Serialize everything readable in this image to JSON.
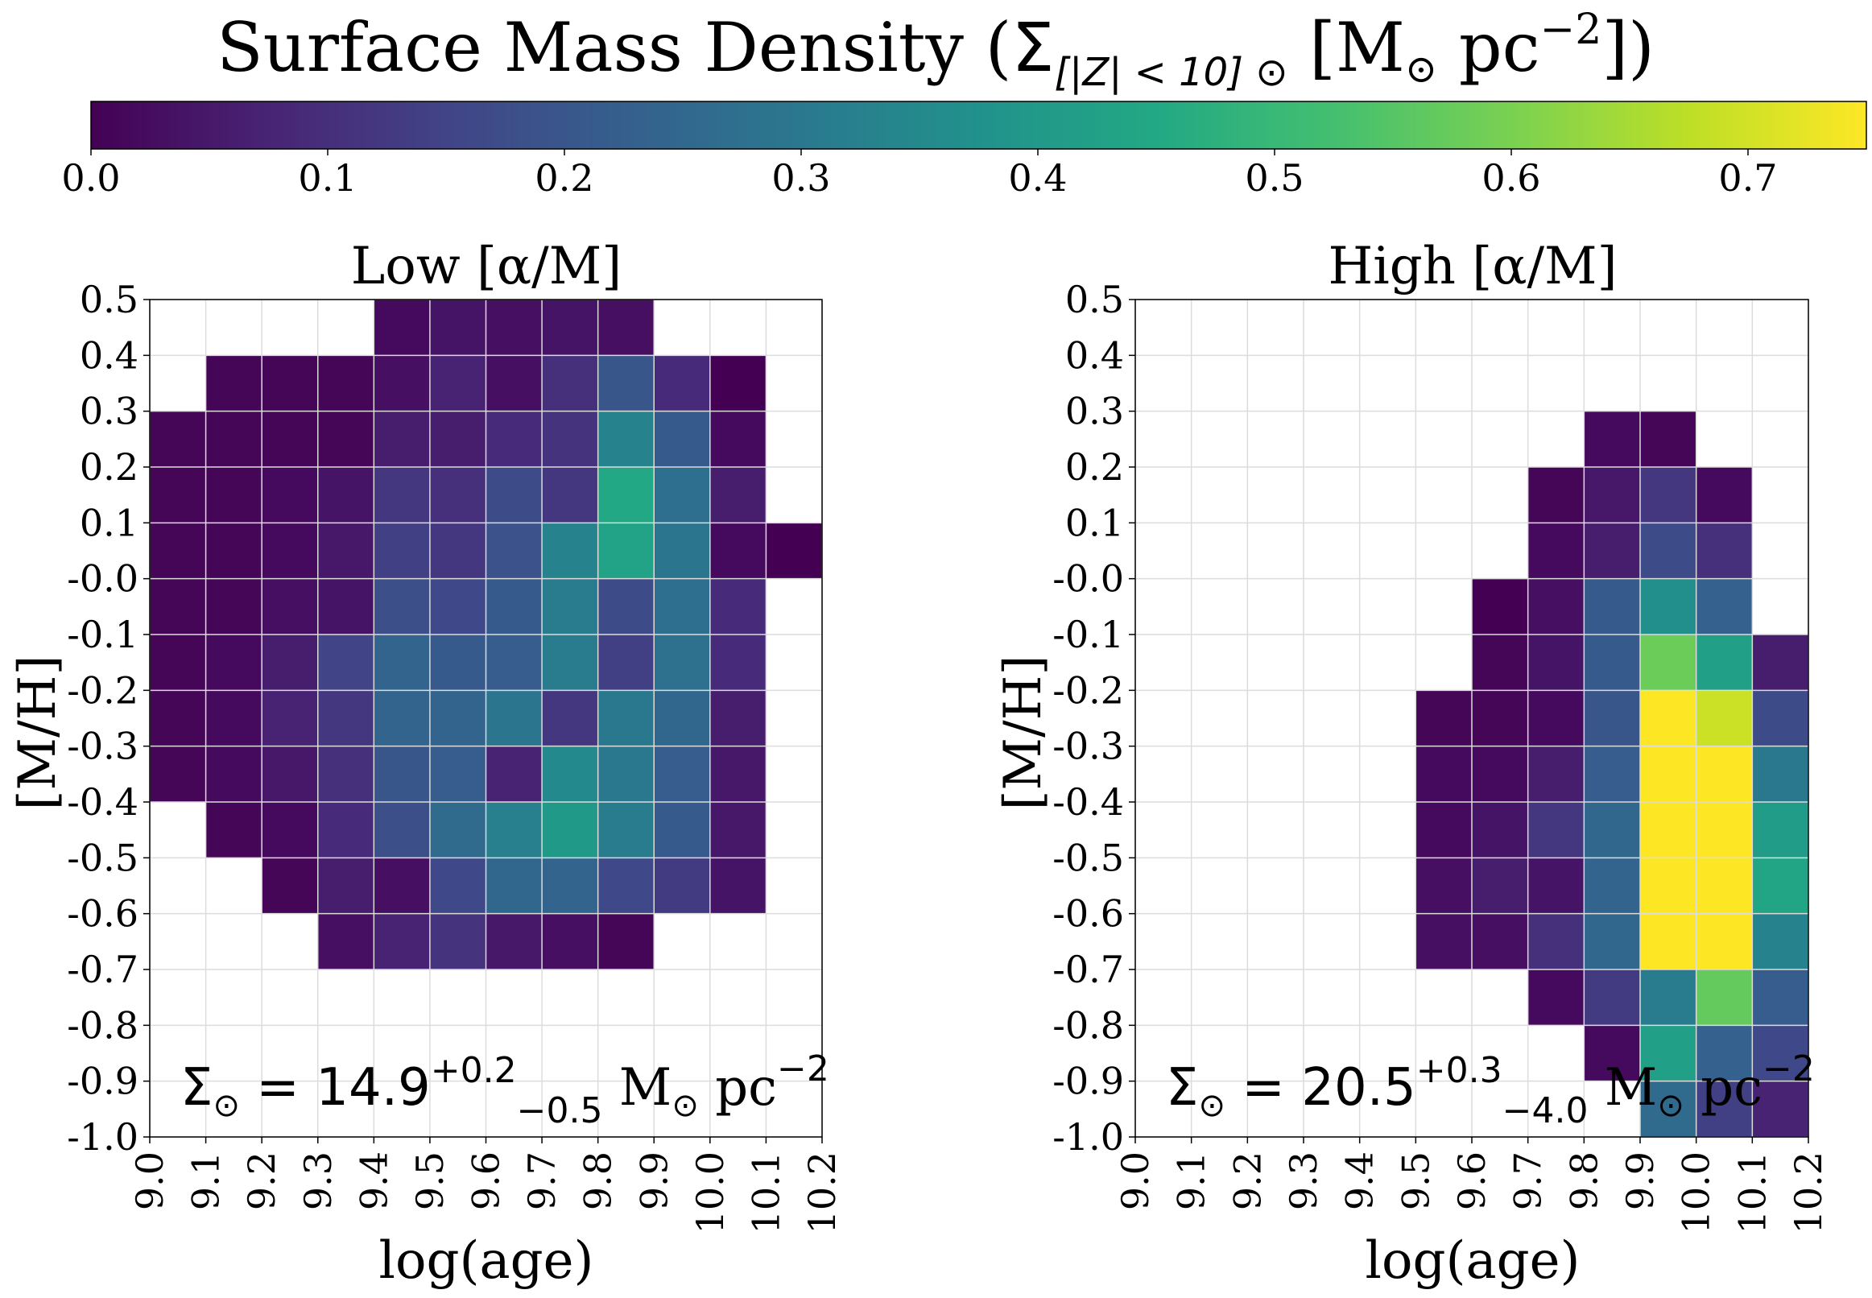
{
  "figure": {
    "title_main": "Surface Mass Density (",
    "title_sigma": "Σ",
    "title_sub": "[|Z| < 10] ⊙",
    "title_units": " [M",
    "title_sun": "⊙",
    "title_pc": " pc",
    "title_exp": "−2",
    "title_close": "])"
  },
  "colorbar": {
    "min": 0.0,
    "max": 0.75,
    "colormap": "viridis",
    "ticks": [
      "0.0",
      "0.1",
      "0.2",
      "0.3",
      "0.4",
      "0.5",
      "0.6",
      "0.7"
    ],
    "tick_values": [
      0.0,
      0.1,
      0.2,
      0.3,
      0.4,
      0.5,
      0.6,
      0.7
    ]
  },
  "chart_data": [
    {
      "type": "heatmap",
      "title": "Low [α/M]",
      "xlabel": "log(age)",
      "ylabel": "[M/H]",
      "xlim": [
        9.0,
        10.2
      ],
      "ylim": [
        -1.0,
        0.5
      ],
      "grid": true,
      "x_ticks": [
        "9.0",
        "9.1",
        "9.2",
        "9.3",
        "9.4",
        "9.5",
        "9.6",
        "9.7",
        "9.8",
        "9.9",
        "10.0",
        "10.1",
        "10.2"
      ],
      "y_ticks": [
        "0.5",
        "0.4",
        "0.3",
        "0.2",
        "0.1",
        "-0.0",
        "-0.1",
        "-0.2",
        "-0.3",
        "-0.4",
        "-0.5",
        "-0.6",
        "-0.7",
        "-0.8",
        "-0.9",
        "-1.0"
      ],
      "annotation": {
        "sigma": "Σ",
        "sun": "⊙",
        "eq": " = 14.9",
        "sup": "+0.2",
        "sub": "−0.5",
        "units": " M",
        "units_sun": "⊙",
        "pc": " pc",
        "exp": "−2"
      },
      "x_bin_edges": [
        9.0,
        9.1,
        9.2,
        9.3,
        9.4,
        9.5,
        9.6,
        9.7,
        9.8,
        9.9,
        10.0,
        10.1,
        10.2
      ],
      "y_bin_edges": [
        0.5,
        0.4,
        0.3,
        0.2,
        0.1,
        0.0,
        -0.1,
        -0.2,
        -0.3,
        -0.4,
        -0.5,
        -0.6,
        -0.7,
        -0.8,
        -0.9,
        -1.0
      ],
      "values": [
        [
          null,
          null,
          null,
          null,
          0.02,
          0.04,
          0.03,
          0.04,
          0.03,
          null,
          null,
          null
        ],
        [
          null,
          0.01,
          0.01,
          0.01,
          0.03,
          0.07,
          0.03,
          0.1,
          0.2,
          0.09,
          0.0,
          null
        ],
        [
          0.01,
          0.01,
          0.01,
          0.01,
          0.06,
          0.06,
          0.09,
          0.11,
          0.33,
          0.21,
          0.02,
          null
        ],
        [
          0.01,
          0.01,
          0.02,
          0.04,
          0.12,
          0.1,
          0.17,
          0.12,
          0.45,
          0.27,
          0.06,
          null
        ],
        [
          0.01,
          0.01,
          0.02,
          0.05,
          0.14,
          0.12,
          0.19,
          0.33,
          0.43,
          0.29,
          0.02,
          0.0
        ],
        [
          0.01,
          0.01,
          0.03,
          0.04,
          0.18,
          0.16,
          0.21,
          0.31,
          0.17,
          0.27,
          0.09,
          null
        ],
        [
          0.01,
          0.02,
          0.06,
          0.15,
          0.24,
          0.21,
          0.22,
          0.31,
          0.14,
          0.28,
          0.09,
          null
        ],
        [
          0.01,
          0.02,
          0.07,
          0.12,
          0.24,
          0.24,
          0.29,
          0.12,
          0.3,
          0.25,
          0.06,
          null
        ],
        [
          0.01,
          0.02,
          0.05,
          0.1,
          0.2,
          0.22,
          0.07,
          0.35,
          0.3,
          0.22,
          0.05,
          null
        ],
        [
          null,
          0.01,
          0.02,
          0.09,
          0.18,
          0.26,
          0.32,
          0.4,
          0.31,
          0.21,
          0.05,
          null
        ],
        [
          null,
          null,
          0.01,
          0.06,
          0.03,
          0.16,
          0.25,
          0.24,
          0.16,
          0.13,
          0.04,
          null
        ],
        [
          null,
          null,
          null,
          0.03,
          0.07,
          0.11,
          0.05,
          0.03,
          0.01,
          null,
          null,
          null
        ],
        [
          null,
          null,
          null,
          null,
          null,
          null,
          null,
          null,
          null,
          null,
          null,
          null
        ],
        [
          null,
          null,
          null,
          null,
          null,
          null,
          null,
          null,
          null,
          null,
          null,
          null
        ],
        [
          null,
          null,
          null,
          null,
          null,
          null,
          null,
          null,
          null,
          null,
          null,
          null
        ]
      ]
    },
    {
      "type": "heatmap",
      "title": "High [α/M]",
      "xlabel": "log(age)",
      "ylabel": "[M/H]",
      "xlim": [
        9.0,
        10.2
      ],
      "ylim": [
        -1.0,
        0.5
      ],
      "grid": true,
      "x_ticks": [
        "9.0",
        "9.1",
        "9.2",
        "9.3",
        "9.4",
        "9.5",
        "9.6",
        "9.7",
        "9.8",
        "9.9",
        "10.0",
        "10.1",
        "10.2"
      ],
      "y_ticks": [
        "0.5",
        "0.4",
        "0.3",
        "0.2",
        "0.1",
        "-0.0",
        "-0.1",
        "-0.2",
        "-0.3",
        "-0.4",
        "-0.5",
        "-0.6",
        "-0.7",
        "-0.8",
        "-0.9",
        "-1.0"
      ],
      "annotation": {
        "sigma": "Σ",
        "sun": "⊙",
        "eq": " = 20.5",
        "sup": "+0.3",
        "sub": "−4.0",
        "units": " M",
        "units_sun": "⊙",
        "pc": " pc",
        "exp": "−2"
      },
      "x_bin_edges": [
        9.0,
        9.1,
        9.2,
        9.3,
        9.4,
        9.5,
        9.6,
        9.7,
        9.8,
        9.9,
        10.0,
        10.1,
        10.2
      ],
      "y_bin_edges": [
        0.5,
        0.4,
        0.3,
        0.2,
        0.1,
        0.0,
        -0.1,
        -0.2,
        -0.3,
        -0.4,
        -0.5,
        -0.6,
        -0.7,
        -0.8,
        -0.9,
        -1.0
      ],
      "values": [
        [
          null,
          null,
          null,
          null,
          null,
          null,
          null,
          null,
          null,
          null,
          null,
          null
        ],
        [
          null,
          null,
          null,
          null,
          null,
          null,
          null,
          null,
          null,
          null,
          null,
          null
        ],
        [
          null,
          null,
          null,
          null,
          null,
          null,
          null,
          null,
          0.02,
          0.01,
          null,
          null
        ],
        [
          null,
          null,
          null,
          null,
          null,
          null,
          null,
          0.01,
          0.05,
          0.12,
          0.02,
          null
        ],
        [
          null,
          null,
          null,
          null,
          null,
          null,
          null,
          0.02,
          0.06,
          0.17,
          0.1,
          null
        ],
        [
          null,
          null,
          null,
          null,
          null,
          null,
          0.0,
          0.03,
          0.21,
          0.37,
          0.23,
          null
        ],
        [
          null,
          null,
          null,
          null,
          null,
          null,
          0.01,
          0.04,
          0.21,
          0.58,
          0.42,
          0.06
        ],
        [
          null,
          null,
          null,
          null,
          null,
          0.01,
          0.01,
          0.02,
          0.2,
          0.75,
          0.69,
          0.17
        ],
        [
          null,
          null,
          null,
          null,
          null,
          0.02,
          0.02,
          0.06,
          0.22,
          0.75,
          0.75,
          0.3
        ],
        [
          null,
          null,
          null,
          null,
          null,
          0.02,
          0.04,
          0.12,
          0.25,
          0.75,
          0.75,
          0.41
        ],
        [
          null,
          null,
          null,
          null,
          null,
          0.03,
          0.06,
          0.04,
          0.24,
          0.75,
          0.75,
          0.44
        ],
        [
          null,
          null,
          null,
          null,
          null,
          0.03,
          0.03,
          0.1,
          0.25,
          0.75,
          0.75,
          0.33
        ],
        [
          null,
          null,
          null,
          null,
          null,
          null,
          null,
          0.02,
          0.13,
          0.31,
          0.57,
          0.22
        ],
        [
          null,
          null,
          null,
          null,
          null,
          null,
          null,
          null,
          0.02,
          0.42,
          0.23,
          0.16
        ],
        [
          null,
          null,
          null,
          null,
          null,
          null,
          null,
          null,
          null,
          0.26,
          0.14,
          0.07
        ]
      ]
    }
  ]
}
